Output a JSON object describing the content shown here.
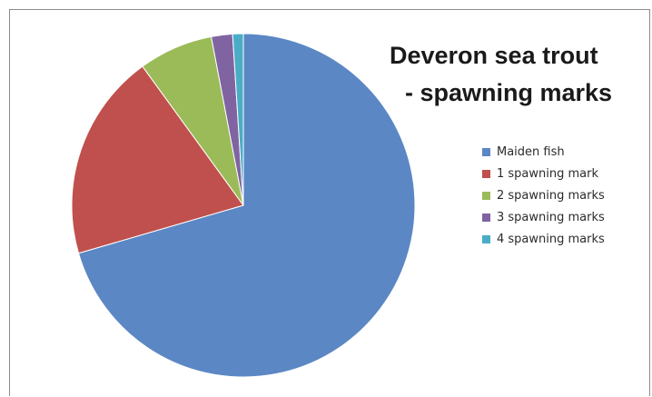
{
  "chart_data": {
    "type": "pie",
    "title_lines": [
      "Deveron sea trout",
      "- spawning marks"
    ],
    "legend_position": "right",
    "categories": [
      "Maiden fish",
      "1 spawning mark",
      "2 spawning marks",
      "3 spawning marks",
      "4 spawning marks"
    ],
    "values": [
      70.5,
      19.5,
      7,
      2,
      1
    ],
    "unit": "percent (estimated)",
    "colors": [
      "#5b87c4",
      "#c0504d",
      "#9bbb59",
      "#8064a2",
      "#4bacc6"
    ],
    "start_angle_deg": 0,
    "direction": "clockwise"
  }
}
